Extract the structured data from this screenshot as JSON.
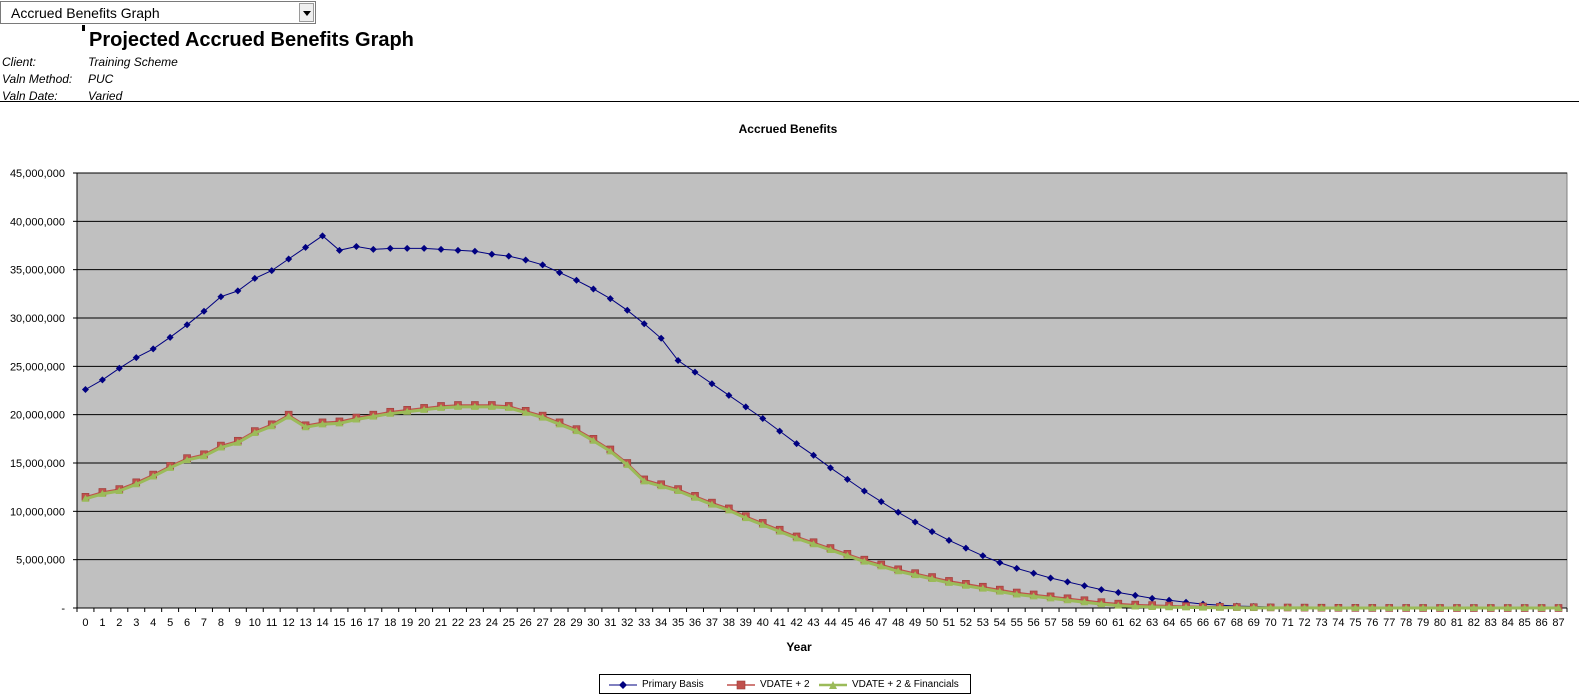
{
  "header": {
    "dropdown_value": "Accrued Benefits Graph",
    "page_title": "Projected Accrued Benefits Graph",
    "meta": [
      {
        "label": "Client:",
        "value": "Training Scheme"
      },
      {
        "label": "Valn Method:",
        "value": "PUC"
      },
      {
        "label": "Valn Date:",
        "value": "Varied"
      }
    ]
  },
  "colors": {
    "plot_background": "#c0c0c0",
    "gridline": "#000000",
    "primary": "#000080",
    "vdate_line": "#c0504d",
    "vdate_marker": "#c0504d",
    "financials_line": "#9bbb59"
  },
  "chart_data": {
    "type": "line",
    "title": "Accrued Benefits",
    "xlabel": "Year",
    "ylabel": "",
    "ylim": [
      0,
      45000000
    ],
    "yticks": [
      0,
      5000000,
      10000000,
      15000000,
      20000000,
      25000000,
      30000000,
      35000000,
      40000000,
      45000000
    ],
    "ytick_labels": [
      "-",
      "5,000,000",
      "10,000,000",
      "15,000,000",
      "20,000,000",
      "25,000,000",
      "30,000,000",
      "35,000,000",
      "40,000,000",
      "45,000,000"
    ],
    "grid": true,
    "legend_position": "bottom",
    "x": [
      0,
      1,
      2,
      3,
      4,
      5,
      6,
      7,
      8,
      9,
      10,
      11,
      12,
      13,
      14,
      15,
      16,
      17,
      18,
      19,
      20,
      21,
      22,
      23,
      24,
      25,
      26,
      27,
      28,
      29,
      30,
      31,
      32,
      33,
      34,
      35,
      36,
      37,
      38,
      39,
      40,
      41,
      42,
      43,
      44,
      45,
      46,
      47,
      48,
      49,
      50,
      51,
      52,
      53,
      54,
      55,
      56,
      57,
      58,
      59,
      60,
      61,
      62,
      63,
      64,
      65,
      66,
      67,
      68,
      69,
      70,
      71,
      72,
      73,
      74,
      75,
      76,
      77,
      78,
      79,
      80,
      81,
      82,
      83,
      84,
      85,
      86,
      87
    ],
    "series": [
      {
        "name": "Primary Basis",
        "marker": "diamond",
        "values": [
          22600000,
          23600000,
          24800000,
          25900000,
          26800000,
          28000000,
          29300000,
          30700000,
          32200000,
          32800000,
          34100000,
          34900000,
          36100000,
          37300000,
          38500000,
          37000000,
          37400000,
          37100000,
          37200000,
          37200000,
          37200000,
          37100000,
          37000000,
          36900000,
          36600000,
          36400000,
          36000000,
          35500000,
          34700000,
          33900000,
          33000000,
          32000000,
          30800000,
          29400000,
          27900000,
          25600000,
          24400000,
          23200000,
          22000000,
          20800000,
          19600000,
          18300000,
          17000000,
          15800000,
          14500000,
          13300000,
          12100000,
          11000000,
          9900000,
          8900000,
          7900000,
          7000000,
          6200000,
          5400000,
          4700000,
          4100000,
          3600000,
          3100000,
          2700000,
          2300000,
          1900000,
          1600000,
          1300000,
          1000000,
          800000,
          600000,
          400000,
          300000,
          200000,
          150000,
          100000,
          70000,
          50000,
          30000,
          20000,
          10000,
          5000,
          3000,
          2000,
          1000,
          500,
          300,
          200,
          100,
          50,
          30,
          20,
          10
        ]
      },
      {
        "name": "VDATE + 2",
        "marker": "square",
        "values": [
          11500000,
          12000000,
          12300000,
          13000000,
          13800000,
          14700000,
          15500000,
          15900000,
          16800000,
          17300000,
          18300000,
          19000000,
          20000000,
          18900000,
          19200000,
          19300000,
          19700000,
          20000000,
          20300000,
          20500000,
          20700000,
          20900000,
          21000000,
          21000000,
          21000000,
          20900000,
          20400000,
          19900000,
          19200000,
          18500000,
          17500000,
          16400000,
          15000000,
          13300000,
          12800000,
          12300000,
          11600000,
          10900000,
          10300000,
          9500000,
          8800000,
          8100000,
          7400000,
          6800000,
          6200000,
          5600000,
          5000000,
          4500000,
          4000000,
          3600000,
          3200000,
          2800000,
          2500000,
          2200000,
          1900000,
          1600000,
          1400000,
          1200000,
          1000000,
          800000,
          600000,
          450000,
          350000,
          300000,
          250000,
          200000,
          150000,
          120000,
          100000,
          80000,
          60000,
          50000,
          40000,
          30000,
          20000,
          15000,
          10000,
          8000,
          6000,
          4000,
          3000,
          2000,
          1000,
          800,
          500,
          300,
          200,
          100
        ]
      },
      {
        "name": "VDATE + 2 & Financials",
        "marker": "triangle",
        "values": [
          11300000,
          11800000,
          12100000,
          12800000,
          13600000,
          14500000,
          15300000,
          15700000,
          16600000,
          17100000,
          18100000,
          18800000,
          19800000,
          18700000,
          19000000,
          19100000,
          19500000,
          19800000,
          20100000,
          20300000,
          20500000,
          20700000,
          20800000,
          20800000,
          20800000,
          20700000,
          20200000,
          19700000,
          19000000,
          18300000,
          17300000,
          16200000,
          14800000,
          13100000,
          12600000,
          12100000,
          11400000,
          10700000,
          10100000,
          9300000,
          8600000,
          7900000,
          7200000,
          6600000,
          6000000,
          5400000,
          4800000,
          4300000,
          3800000,
          3400000,
          3000000,
          2600000,
          2300000,
          2000000,
          1700000,
          1400000,
          1200000,
          1000000,
          800000,
          600000,
          400000,
          250000,
          150000,
          100000,
          80000,
          60000,
          40000,
          30000,
          20000,
          15000,
          10000,
          8000,
          6000,
          4000,
          3000,
          2000,
          1000,
          800,
          600,
          400,
          300,
          200,
          100,
          80,
          50,
          30,
          20,
          10
        ]
      }
    ]
  }
}
